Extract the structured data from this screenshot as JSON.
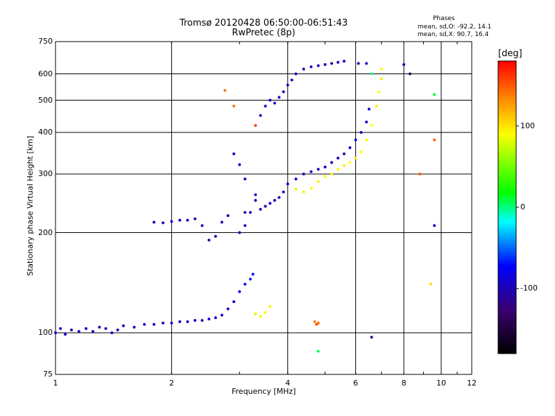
{
  "chart_data": {
    "type": "scatter",
    "title": "Tromsø 20120428 06:50:00-06:51:43",
    "subtitle": "RwPretec (8p)",
    "xlabel": "Frequency [MHz]",
    "ylabel": "Stationary phase Virtual Height [km]",
    "x_scale": "log",
    "y_scale": "log",
    "xlim": [
      1,
      12
    ],
    "ylim": [
      75,
      750
    ],
    "x_ticks": [
      "1",
      "2",
      "4",
      "6",
      "8",
      "10",
      "12"
    ],
    "y_ticks": [
      "75",
      "100",
      "200",
      "300",
      "400",
      "500",
      "600",
      "750"
    ],
    "x_grid": [
      2,
      4,
      6,
      8,
      10
    ],
    "y_grid": [
      100,
      200,
      300,
      400,
      500,
      600
    ],
    "grid": true,
    "phases": {
      "title": "Phases",
      "line_o": "mean, sd,O:  -92.2,  14.1",
      "line_x": "mean, sd,X:   90.7,  16.4"
    },
    "colorbar": {
      "label": "[deg]",
      "ticks": [
        "100",
        "0",
        "-100"
      ],
      "tick_values": [
        100,
        0,
        -100
      ],
      "range": [
        -180,
        180
      ]
    },
    "series": [
      {
        "points": [
          [
            1.0,
            100,
            -95
          ],
          [
            1.03,
            103,
            -95
          ],
          [
            1.06,
            99,
            -90
          ],
          [
            1.1,
            102,
            -100
          ],
          [
            1.15,
            101,
            -95
          ],
          [
            1.2,
            103,
            -90
          ],
          [
            1.25,
            101,
            -95
          ],
          [
            1.3,
            104,
            -95
          ],
          [
            1.35,
            103,
            -100
          ],
          [
            1.4,
            100,
            -90
          ],
          [
            1.45,
            102,
            -95
          ],
          [
            1.5,
            105,
            -90
          ],
          [
            1.6,
            104,
            -95
          ],
          [
            1.7,
            106,
            -95
          ],
          [
            1.8,
            106,
            -90
          ],
          [
            1.9,
            107,
            -95
          ],
          [
            2.0,
            107,
            -95
          ],
          [
            2.1,
            108,
            -95
          ],
          [
            2.2,
            108,
            -95
          ],
          [
            2.3,
            109,
            -95
          ],
          [
            2.4,
            109,
            -95
          ],
          [
            2.5,
            110,
            -95
          ],
          [
            2.6,
            111,
            -95
          ],
          [
            2.7,
            113,
            -90
          ],
          [
            2.8,
            118,
            -85
          ],
          [
            2.9,
            124,
            -80
          ],
          [
            3.0,
            133,
            -75
          ],
          [
            3.1,
            140,
            -70
          ],
          [
            3.2,
            145,
            -65
          ],
          [
            3.25,
            150,
            -70
          ],
          [
            1.8,
            215,
            -95
          ],
          [
            1.9,
            214,
            -95
          ],
          [
            2.0,
            216,
            -95
          ],
          [
            2.1,
            218,
            -95
          ],
          [
            2.2,
            218,
            -95
          ],
          [
            2.3,
            220,
            -95
          ],
          [
            2.4,
            210,
            -100
          ],
          [
            2.5,
            190,
            -105
          ],
          [
            2.6,
            195,
            -100
          ],
          [
            2.7,
            215,
            -95
          ],
          [
            2.8,
            225,
            -95
          ],
          [
            3.0,
            200,
            -95
          ],
          [
            3.1,
            210,
            -90
          ],
          [
            3.2,
            230,
            -95
          ],
          [
            3.3,
            250,
            -95
          ],
          [
            3.4,
            235,
            -95
          ],
          [
            3.5,
            240,
            -95
          ],
          [
            3.6,
            245,
            -90
          ],
          [
            3.7,
            250,
            -95
          ],
          [
            3.8,
            255,
            -95
          ],
          [
            3.9,
            265,
            -90
          ],
          [
            4.0,
            280,
            -90
          ],
          [
            4.2,
            290,
            -95
          ],
          [
            4.4,
            300,
            -95
          ],
          [
            4.6,
            305,
            -90
          ],
          [
            4.8,
            310,
            -95
          ],
          [
            5.0,
            315,
            -90
          ],
          [
            5.2,
            325,
            -95
          ],
          [
            5.4,
            335,
            -90
          ],
          [
            5.6,
            345,
            -95
          ],
          [
            5.8,
            360,
            -90
          ],
          [
            6.0,
            380,
            -95
          ],
          [
            6.2,
            400,
            -90
          ],
          [
            6.4,
            430,
            -95
          ],
          [
            6.5,
            470,
            -90
          ],
          [
            3.3,
            420,
            -95
          ],
          [
            3.4,
            450,
            -90
          ],
          [
            3.5,
            480,
            -95
          ],
          [
            3.6,
            500,
            -90
          ],
          [
            3.7,
            490,
            -95
          ],
          [
            3.8,
            510,
            -90
          ],
          [
            3.9,
            530,
            -95
          ],
          [
            4.0,
            555,
            -90
          ],
          [
            4.1,
            575,
            -95
          ],
          [
            4.2,
            600,
            -90
          ],
          [
            4.4,
            620,
            -95
          ],
          [
            4.6,
            630,
            -95
          ],
          [
            4.8,
            635,
            -90
          ],
          [
            5.0,
            640,
            -95
          ],
          [
            5.2,
            645,
            -90
          ],
          [
            5.4,
            650,
            -95
          ],
          [
            5.6,
            655,
            -90
          ],
          [
            6.1,
            645,
            -95
          ],
          [
            6.4,
            645,
            -90
          ],
          [
            8.0,
            640,
            -90
          ],
          [
            2.9,
            345,
            -95
          ],
          [
            3.0,
            320,
            -95
          ],
          [
            3.1,
            290,
            -95
          ],
          [
            3.3,
            260,
            -95
          ],
          [
            3.1,
            230,
            -95
          ],
          [
            4.2,
            270,
            80
          ],
          [
            4.4,
            265,
            85
          ],
          [
            4.6,
            272,
            90
          ],
          [
            4.8,
            285,
            95
          ],
          [
            5.0,
            295,
            90
          ],
          [
            5.2,
            300,
            95
          ],
          [
            5.4,
            310,
            90
          ],
          [
            5.6,
            318,
            95
          ],
          [
            5.8,
            325,
            90
          ],
          [
            6.0,
            335,
            95
          ],
          [
            6.2,
            350,
            90
          ],
          [
            6.4,
            380,
            95
          ],
          [
            6.6,
            420,
            90
          ],
          [
            6.8,
            480,
            95
          ],
          [
            6.9,
            530,
            90
          ],
          [
            7.0,
            580,
            95
          ],
          [
            7.0,
            620,
            90
          ],
          [
            3.3,
            114,
            80
          ],
          [
            3.4,
            112,
            85
          ],
          [
            3.5,
            115,
            90
          ],
          [
            3.6,
            120,
            95
          ],
          [
            4.7,
            108,
            140
          ],
          [
            4.75,
            106,
            150
          ],
          [
            4.8,
            107,
            145
          ],
          [
            2.75,
            535,
            140
          ],
          [
            2.9,
            480,
            140
          ],
          [
            3.3,
            420,
            150
          ],
          [
            8.8,
            300,
            150
          ],
          [
            9.6,
            380,
            150
          ],
          [
            6.6,
            600,
            0
          ],
          [
            9.6,
            520,
            10
          ],
          [
            8.3,
            600,
            -140
          ],
          [
            9.6,
            210,
            -90
          ],
          [
            6.6,
            97,
            -110
          ],
          [
            4.8,
            88,
            10
          ],
          [
            9.4,
            140,
            100
          ]
        ]
      }
    ]
  }
}
